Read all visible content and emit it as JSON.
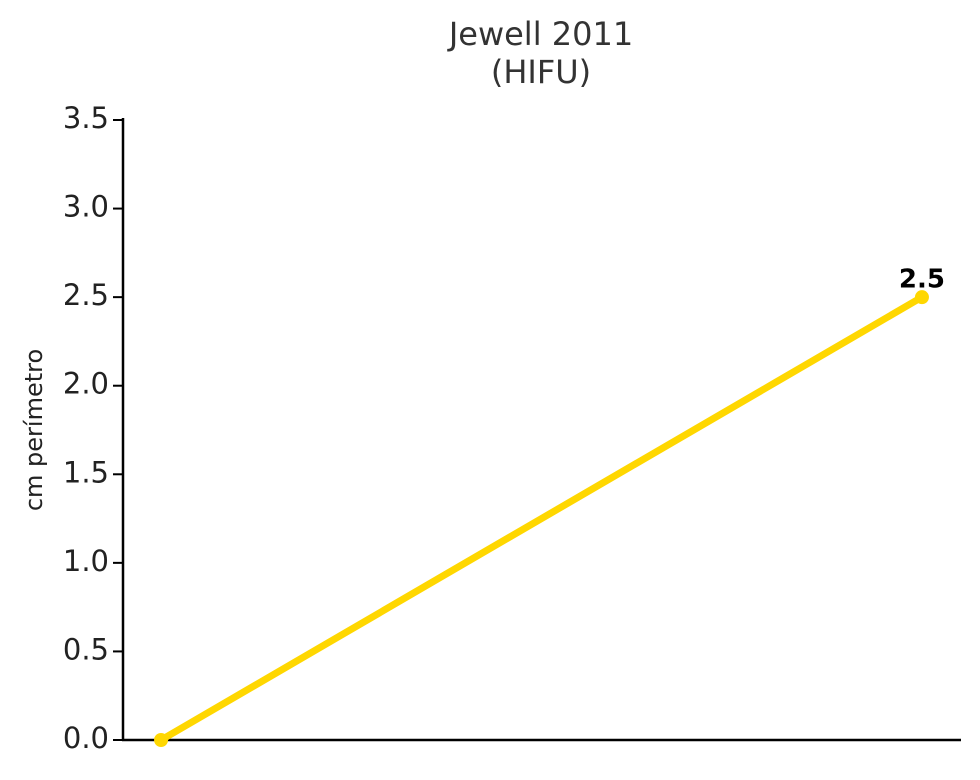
{
  "chart_data": {
    "type": "line",
    "title": "Jewell 2011",
    "subtitle": "(HIFU)",
    "y_label": "cm perímetro",
    "categories": [
      null,
      null
    ],
    "series": [
      {
        "color": "#ffd700",
        "values": [
          0,
          2.5
        ],
        "value_labels": [
          null,
          "2.5"
        ]
      }
    ],
    "ylim": [
      0,
      3.5
    ],
    "yticks": [
      {
        "value": 0,
        "label": "0.0"
      },
      0.5,
      {
        "value": 1,
        "label": "1.0"
      },
      1.5,
      {
        "value": 2,
        "label": "2.0"
      },
      2.5,
      {
        "value": 3,
        "label": "3.0"
      },
      3.5
    ],
    "grid": false
  }
}
